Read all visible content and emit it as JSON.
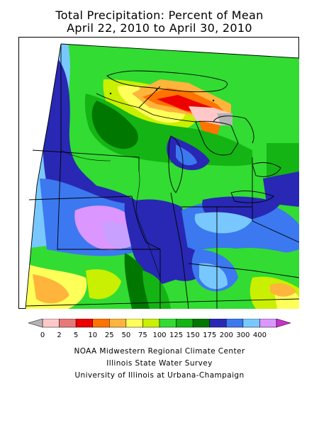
{
  "title": {
    "line1": "Total Precipitation: Percent of Mean",
    "line2": "April 22, 2010 to April 30, 2010"
  },
  "legend": {
    "labels": [
      "0",
      "2",
      "5",
      "10",
      "25",
      "50",
      "75",
      "100",
      "125",
      "150",
      "175",
      "200",
      "300",
      "400"
    ],
    "colors": [
      "#ffc8c8",
      "#e87878",
      "#ee0000",
      "#ff7300",
      "#ffb43c",
      "#ffff5a",
      "#c8f000",
      "#32dc32",
      "#14b414",
      "#007800",
      "#2828b4",
      "#3c78f0",
      "#78c8ff",
      "#dc96ff"
    ],
    "low_arrow_color": "#b4b4b4",
    "high_arrow_color": "#c832c8"
  },
  "credits": {
    "line1": "NOAA Midwestern Regional Climate Center",
    "line2": "Illinois State Water Survey",
    "line3": "University of Illinois at Urbana-Champaign"
  }
}
